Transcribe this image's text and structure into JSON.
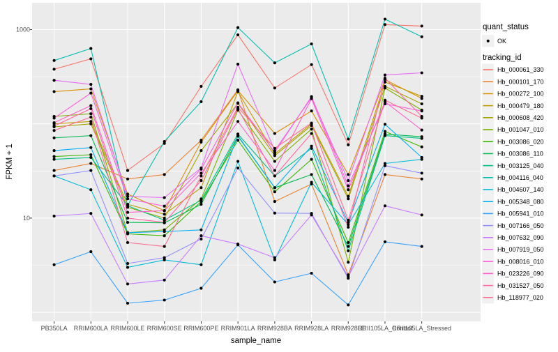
{
  "chart_data": {
    "type": "line",
    "title": "",
    "xlabel": "sample_name",
    "ylabel": "FPKM + 1",
    "y_scale": "log10",
    "y_ticks": [
      10,
      1000
    ],
    "y_tick_labels": [
      "10",
      "1000"
    ],
    "ylim": [
      0.9,
      1700
    ],
    "grid": "on",
    "legend_position": "right",
    "categories": [
      "PB350LA",
      "RRIM600LA",
      "RRIM600LE",
      "RRIM600SE",
      "RRIM600PE",
      "RRIM901LA",
      "RRIM928BA",
      "RRIM928LA",
      "RRIM928LE",
      "RRII105LA_Control",
      "RRII105LA_Stressed"
    ],
    "series": [
      {
        "name": "Hb_000061_330",
        "color": "#F8766D",
        "values": [
          380,
          490,
          32,
          62,
          250,
          880,
          240,
          425,
          60,
          1130,
          1090
        ]
      },
      {
        "name": "Hb_000101_170",
        "color": "#EA8331",
        "values": [
          32,
          38,
          26,
          29,
          67,
          230,
          15,
          23,
          2.5,
          29,
          26
        ]
      },
      {
        "name": "Hb_000272_100",
        "color": "#D89000",
        "values": [
          220,
          235,
          18,
          12,
          64,
          225,
          79,
          137,
          29,
          295,
          186
        ]
      },
      {
        "name": "Hb_000479_180",
        "color": "#C09B00",
        "values": [
          100,
          106,
          14,
          11,
          21,
          220,
          48,
          100,
          17,
          278,
          196
        ]
      },
      {
        "name": "Hb_000608_420",
        "color": "#A3A500",
        "values": [
          93,
          100,
          13,
          10,
          52,
          165,
          46,
          96,
          16,
          250,
          163
        ]
      },
      {
        "name": "Hb_001047_010",
        "color": "#7CAE00",
        "values": [
          120,
          128,
          7,
          7.5,
          16,
          140,
          40,
          88,
          3.4,
          240,
          140
        ]
      },
      {
        "name": "Hb_003086_020",
        "color": "#39B600",
        "values": [
          45,
          47,
          6.8,
          6.5,
          15,
          67,
          19,
          42,
          5.5,
          83,
          57
        ]
      },
      {
        "name": "Hb_003086_110",
        "color": "#00BB4E",
        "values": [
          71,
          75,
          9,
          8.9,
          14,
          74,
          21,
          29,
          5,
          78,
          73
        ]
      },
      {
        "name": "Hb_003125_040",
        "color": "#00C087",
        "values": [
          42,
          44,
          13.5,
          9.5,
          15.5,
          78,
          28,
          55,
          4.5,
          75,
          70
        ]
      },
      {
        "name": "Hb_004116_040",
        "color": "#00C0AF",
        "values": [
          470,
          630,
          13.6,
          65,
          172,
          1050,
          444,
          705,
          69,
          1290,
          840
        ]
      },
      {
        "name": "Hb_004607_140",
        "color": "#00BCD8",
        "values": [
          28,
          20,
          3,
          3.6,
          3.2,
          40,
          3.6,
          24,
          8.5,
          38,
          42
        ]
      },
      {
        "name": "Hb_005348_080",
        "color": "#00B0F6",
        "values": [
          52,
          56,
          7,
          7.2,
          7.5,
          75,
          21,
          58,
          9,
          99,
          44
        ]
      },
      {
        "name": "Hb_005941_010",
        "color": "#35A2FF",
        "values": [
          3.2,
          4.4,
          1.25,
          1.35,
          1.8,
          5.2,
          2.1,
          2.6,
          1.2,
          5.6,
          5
        ]
      },
      {
        "name": "Hb_007166_050",
        "color": "#9590FF",
        "values": [
          28,
          32,
          3.3,
          3.8,
          6,
          34,
          11.3,
          11.2,
          2.3,
          36,
          30
        ]
      },
      {
        "name": "Hb_007632_090",
        "color": "#C77CFF",
        "values": [
          10.5,
          11.2,
          2,
          2.2,
          6.5,
          5.3,
          3.8,
          10.8,
          2.4,
          13.5,
          10.8
        ]
      },
      {
        "name": "Hb_007919_050",
        "color": "#E76BF3",
        "values": [
          290,
          262,
          17,
          16.5,
          34,
          430,
          52,
          190,
          25,
          330,
          348
        ]
      },
      {
        "name": "Hb_008016_010",
        "color": "#FA62DB",
        "values": [
          115,
          212,
          16,
          13.4,
          33,
          167,
          50,
          195,
          22,
          163,
          137
        ]
      },
      {
        "name": "Hb_023226_090",
        "color": "#FF61CC",
        "values": [
          103,
          156,
          11.5,
          12,
          30,
          106,
          32,
          185,
          20,
          172,
          86
        ]
      },
      {
        "name": "Hb_031527_050",
        "color": "#FF67A4",
        "values": [
          95,
          145,
          10,
          9,
          25,
          145,
          28,
          79,
          8,
          305,
          120
        ]
      },
      {
        "name": "Hb_118977_020",
        "color": "#FF6C91",
        "values": [
          85,
          118,
          5.5,
          5,
          28,
          150,
          55,
          102,
          9.5,
          178,
          115
        ]
      }
    ],
    "legend": {
      "quant_status": {
        "title": "quant_status",
        "items": [
          {
            "label": "OK",
            "glyph": "black-point"
          }
        ]
      },
      "tracking_id": {
        "title": "tracking_id"
      }
    },
    "point_color": "#000000"
  },
  "style_colors": {
    "panel_background": "#EBEBEB",
    "grid_line": "#FFFFFF",
    "axis_text": "#4d4d4d",
    "legend_key_background": "#F1F1F1"
  }
}
